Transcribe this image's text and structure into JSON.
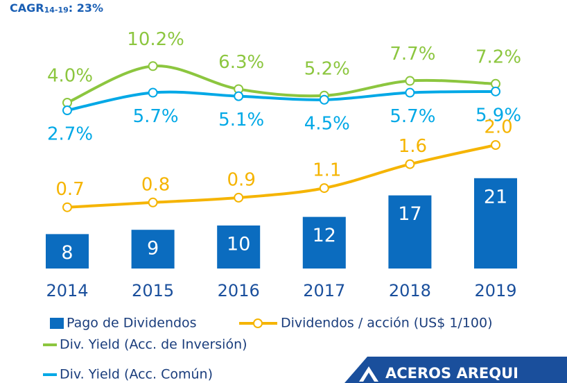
{
  "chart_data": {
    "type": "bar",
    "cagr_label": "CAGR",
    "cagr_period": "14-19",
    "cagr_value": ": 23%",
    "categories": [
      "2014",
      "2015",
      "2016",
      "2017",
      "2018",
      "2019"
    ],
    "series": [
      {
        "name": "Pago de Dividendos",
        "type": "bar",
        "color": "#0b6cbf",
        "values": [
          8,
          9,
          10,
          12,
          17,
          21
        ]
      },
      {
        "name": "Dividendos / acción (US$ 1/100)",
        "type": "line",
        "marker": true,
        "color": "#f5b400",
        "values": [
          0.7,
          0.8,
          0.9,
          1.1,
          1.6,
          2.0
        ],
        "value_labels": [
          "0.7",
          "0.8",
          "0.9",
          "1.1",
          "1.6",
          "2.0"
        ]
      },
      {
        "name": "Div. Yield (Acc. de Inversión)",
        "type": "line",
        "marker": true,
        "color": "#8cc63f",
        "values": [
          4.0,
          10.2,
          6.3,
          5.2,
          7.7,
          7.2
        ],
        "value_labels": [
          "4.0%",
          "10.2%",
          "6.3%",
          "5.2%",
          "7.7%",
          "7.2%"
        ]
      },
      {
        "name": "Div. Yield (Acc. Común)",
        "type": "line",
        "marker": true,
        "color": "#00a8e6",
        "values": [
          2.7,
          5.7,
          5.1,
          4.5,
          5.7,
          5.9
        ],
        "value_labels": [
          "2.7%",
          "5.7%",
          "5.1%",
          "4.5%",
          "5.7%",
          "5.9%"
        ]
      }
    ]
  },
  "logo": {
    "text": "ACEROS AREQUI"
  }
}
